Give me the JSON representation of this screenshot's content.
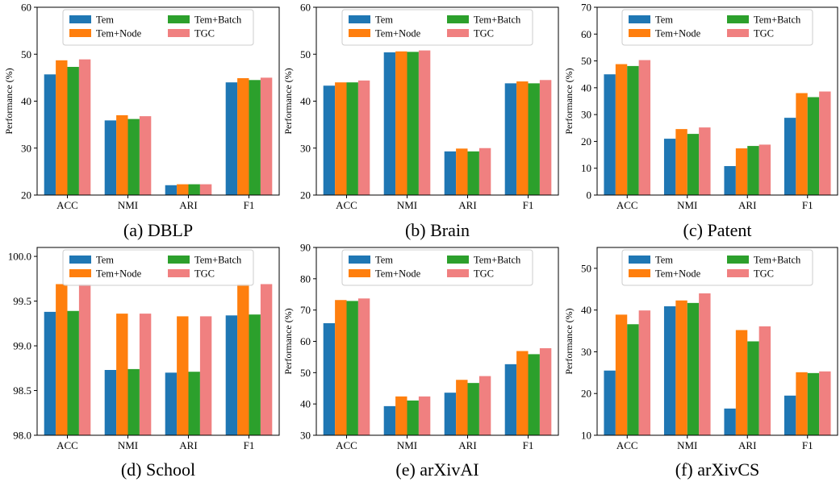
{
  "series_names": [
    "Tem",
    "Tem+Node",
    "Tem+Batch",
    "TGC"
  ],
  "series_colors": [
    "#1f77b4",
    "#ff7f0e",
    "#2ca02c",
    "#f08080"
  ],
  "chart_data": [
    {
      "type": "bar",
      "caption": "(a) DBLP",
      "ylabel": "Performance (%)",
      "categories": [
        "ACC",
        "NMI",
        "ARI",
        "F1"
      ],
      "ylim": [
        20,
        60
      ],
      "yticks": [
        20,
        30,
        40,
        50,
        60
      ],
      "series": [
        {
          "name": "Tem",
          "values": [
            45.7,
            35.9,
            22.1,
            44.0
          ]
        },
        {
          "name": "Tem+Node",
          "values": [
            48.7,
            37.0,
            22.3,
            44.9
          ]
        },
        {
          "name": "Tem+Batch",
          "values": [
            47.3,
            36.2,
            22.3,
            44.5
          ]
        },
        {
          "name": "TGC",
          "values": [
            48.9,
            36.8,
            22.3,
            45.0
          ]
        }
      ],
      "legend": "upper-center",
      "grid": false
    },
    {
      "type": "bar",
      "caption": "(b) Brain",
      "ylabel": "Performance (%)",
      "categories": [
        "ACC",
        "NMI",
        "ARI",
        "F1"
      ],
      "ylim": [
        20,
        60
      ],
      "yticks": [
        20,
        30,
        40,
        50,
        60
      ],
      "series": [
        {
          "name": "Tem",
          "values": [
            43.3,
            50.4,
            29.3,
            43.8
          ]
        },
        {
          "name": "Tem+Node",
          "values": [
            44.0,
            50.6,
            29.9,
            44.2
          ]
        },
        {
          "name": "Tem+Batch",
          "values": [
            44.0,
            50.5,
            29.3,
            43.8
          ]
        },
        {
          "name": "TGC",
          "values": [
            44.4,
            50.8,
            30.0,
            44.5
          ]
        }
      ],
      "legend": "upper-center",
      "grid": false
    },
    {
      "type": "bar",
      "caption": "(c) Patent",
      "ylabel": "Performance (%)",
      "categories": [
        "ACC",
        "NMI",
        "ARI",
        "F1"
      ],
      "ylim": [
        0,
        70
      ],
      "yticks": [
        0,
        10,
        20,
        30,
        40,
        50,
        60,
        70
      ],
      "series": [
        {
          "name": "Tem",
          "values": [
            45.0,
            21.0,
            10.8,
            28.8
          ]
        },
        {
          "name": "Tem+Node",
          "values": [
            48.8,
            24.6,
            17.4,
            38.0
          ]
        },
        {
          "name": "Tem+Batch",
          "values": [
            48.1,
            22.8,
            18.3,
            36.5
          ]
        },
        {
          "name": "TGC",
          "values": [
            50.3,
            25.2,
            18.8,
            38.6
          ]
        }
      ],
      "legend": "upper-center",
      "grid": false
    },
    {
      "type": "bar",
      "caption": "(d) School",
      "ylabel": "",
      "categories": [
        "ACC",
        "NMI",
        "ARI",
        "F1"
      ],
      "ylim": [
        98.0,
        100.1
      ],
      "yticks": [
        98.0,
        98.5,
        99.0,
        99.5,
        100.0
      ],
      "ytick_decimals": 1,
      "series": [
        {
          "name": "Tem",
          "values": [
            99.38,
            98.73,
            98.7,
            99.34
          ]
        },
        {
          "name": "Tem+Node",
          "values": [
            99.69,
            99.36,
            99.33,
            99.69
          ]
        },
        {
          "name": "Tem+Batch",
          "values": [
            99.39,
            98.74,
            98.71,
            99.35
          ]
        },
        {
          "name": "TGC",
          "values": [
            99.69,
            99.36,
            99.33,
            99.69
          ]
        }
      ],
      "legend": "upper-center",
      "grid": false
    },
    {
      "type": "bar",
      "caption": "(e) arXivAI",
      "ylabel": "Performance (%)",
      "categories": [
        "ACC",
        "NMI",
        "ARI",
        "F1"
      ],
      "ylim": [
        30,
        90
      ],
      "yticks": [
        30,
        40,
        50,
        60,
        70,
        80,
        90
      ],
      "series": [
        {
          "name": "Tem",
          "values": [
            65.8,
            39.3,
            43.6,
            52.7
          ]
        },
        {
          "name": "Tem+Node",
          "values": [
            73.2,
            42.4,
            47.7,
            56.9
          ]
        },
        {
          "name": "Tem+Batch",
          "values": [
            72.9,
            41.1,
            46.7,
            55.9
          ]
        },
        {
          "name": "TGC",
          "values": [
            73.7,
            42.4,
            48.9,
            57.8
          ]
        }
      ],
      "legend": "upper-center",
      "grid": false
    },
    {
      "type": "bar",
      "caption": "(f) arXivCS",
      "ylabel": "Performance (%)",
      "categories": [
        "ACC",
        "NMI",
        "ARI",
        "F1"
      ],
      "ylim": [
        10,
        55
      ],
      "yticks": [
        10,
        20,
        30,
        40,
        50
      ],
      "series": [
        {
          "name": "Tem",
          "values": [
            25.5,
            40.9,
            16.4,
            19.5
          ]
        },
        {
          "name": "Tem+Node",
          "values": [
            38.9,
            42.3,
            35.2,
            25.1
          ]
        },
        {
          "name": "Tem+Batch",
          "values": [
            36.6,
            41.7,
            32.5,
            24.9
          ]
        },
        {
          "name": "TGC",
          "values": [
            39.9,
            44.0,
            36.1,
            25.3
          ]
        }
      ],
      "legend": "upper-center",
      "grid": false
    }
  ]
}
